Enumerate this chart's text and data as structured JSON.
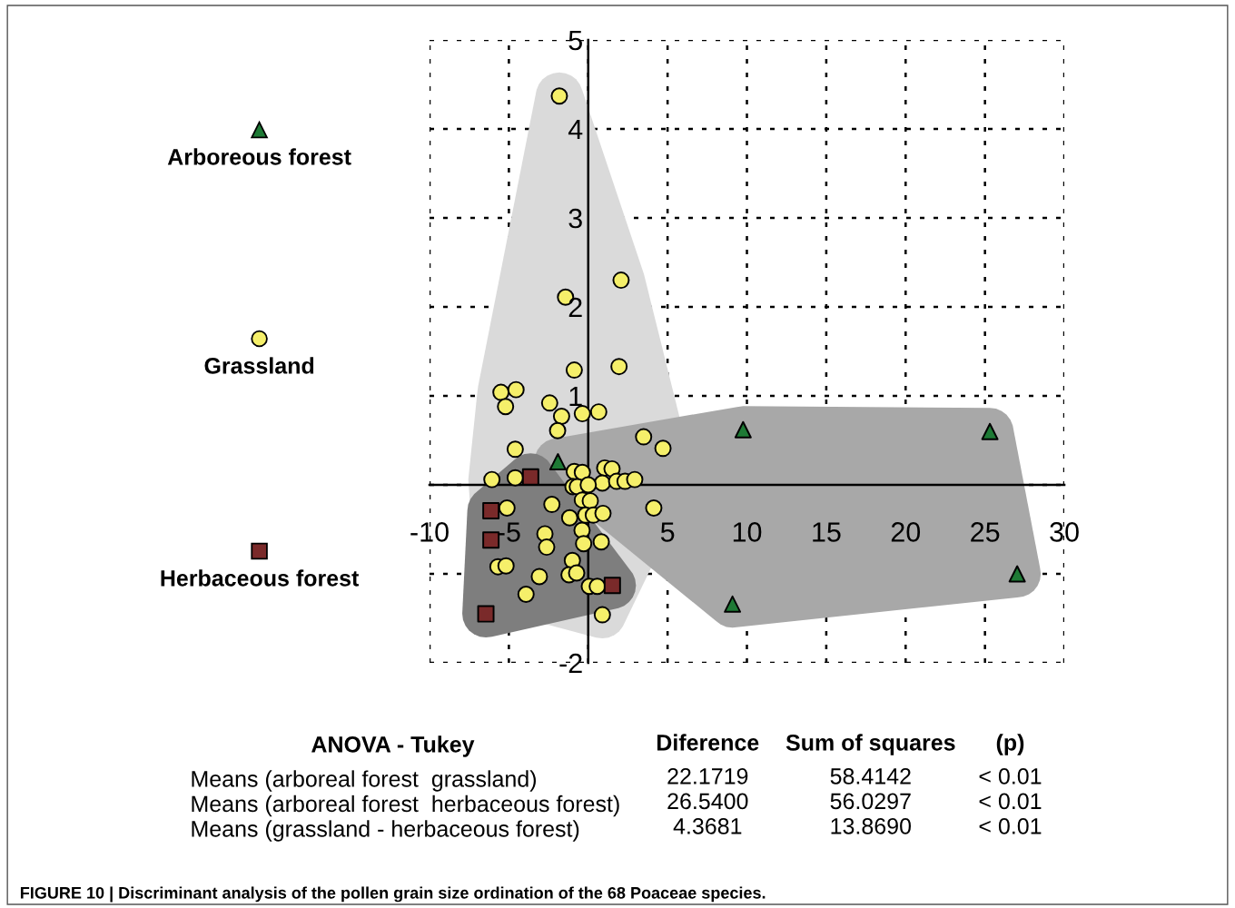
{
  "chart_data": {
    "type": "scatter",
    "title": "FIGURE 10 | Discriminant analysis of the pollen grain size ordination of the 68 Poaceae species.",
    "xlim": [
      -10,
      30
    ],
    "xticks": [
      -10,
      -5,
      {
        "value": 0,
        "label": null
      },
      5,
      10,
      15,
      20,
      25,
      30
    ],
    "ylim": [
      -2,
      5
    ],
    "yticks": [
      -2,
      {
        "value": -1,
        "label": null
      },
      {
        "value": 0,
        "label": null
      },
      1,
      2,
      3,
      4,
      5
    ],
    "grid": true,
    "legend": "left",
    "series": [
      {
        "name": "Arboreous forest",
        "color": "#1e7a35",
        "marker": "triangle",
        "x": [
          -1.91,
          9.76,
          25.31,
          27.03,
          9.09
        ],
        "values": [
          0.26,
          0.62,
          0.6,
          -1.0,
          -1.34
        ]
      },
      {
        "name": "Grassland",
        "color": "#f5ef6a",
        "marker": "circle",
        "x": [
          -0.88,
          1.94,
          -5.5,
          -4.55,
          -5.21,
          -2.43,
          -1.68,
          -0.37,
          0.66,
          -1.93,
          3.49,
          4.71,
          -4.6,
          -6.07,
          -4.6,
          -0.88,
          -0.37,
          1.04,
          1.5,
          0.89,
          1.79,
          2.32,
          2.93,
          -0.96,
          -0.69,
          0.0,
          -0.37,
          0.13,
          -5.12,
          -2.29,
          -1.17,
          -0.16,
          0.32,
          0.93,
          4.13,
          -2.73,
          -2.62,
          -0.39,
          -0.29,
          0.82,
          -5.69,
          -5.18,
          -1.0,
          -1.21,
          -0.73,
          -3.08,
          -3.92,
          0.07,
          0.57,
          0.89,
          -1.82,
          2.07,
          -1.43
        ],
        "values": [
          1.29,
          1.33,
          1.04,
          1.07,
          0.88,
          0.92,
          0.77,
          0.8,
          0.82,
          0.61,
          0.54,
          0.41,
          0.4,
          0.06,
          0.08,
          0.15,
          0.14,
          0.19,
          0.18,
          0.02,
          0.04,
          0.04,
          0.06,
          -0.02,
          -0.02,
          0.0,
          -0.17,
          -0.18,
          -0.26,
          -0.22,
          -0.37,
          -0.34,
          -0.34,
          -0.32,
          -0.26,
          -0.55,
          -0.7,
          -0.51,
          -0.66,
          -0.64,
          -0.92,
          -0.91,
          -0.85,
          -1.01,
          -0.99,
          -1.03,
          -1.23,
          -1.14,
          -1.14,
          -1.46,
          4.37,
          2.3,
          2.11
        ]
      },
      {
        "name": "Herbaceous forest",
        "color": "#7a2a2a",
        "marker": "square",
        "x": [
          -3.63,
          -6.13,
          -6.13,
          1.52,
          -6.45
        ],
        "values": [
          0.09,
          -0.29,
          -0.62,
          -1.13,
          -1.45
        ]
      }
    ],
    "annotations": [
      "ANOVA - Tukey",
      "Diference",
      "Sum of squares",
      "(p)",
      "Means (arboreal forest  grassland)",
      "22.1719",
      "58.4142",
      "< 0.01",
      "Means (arboreal forest  herbaceous forest)",
      "26.5400",
      "56.0297",
      "< 0.01",
      "Means (grassland - herbaceous forest)",
      "4.3681",
      "13.8690",
      "< 0.01"
    ]
  }
}
